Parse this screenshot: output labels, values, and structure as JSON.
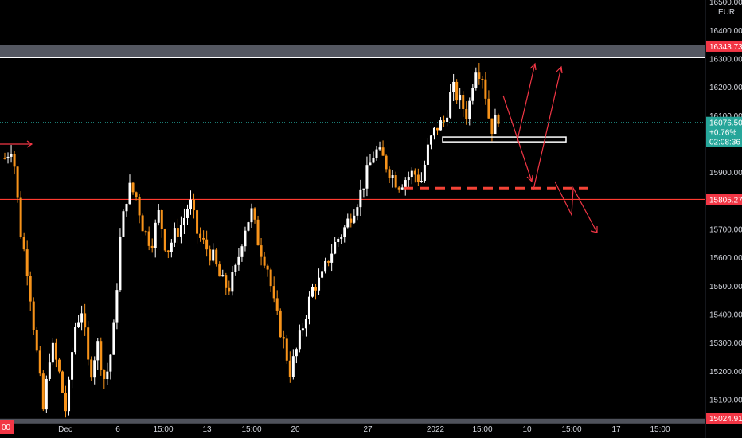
{
  "chart_data": {
    "type": "candlestick",
    "currency": "EUR",
    "y_axis_ticks": [
      15100,
      15200,
      15300,
      15400,
      15500,
      15600,
      15700,
      15800,
      15900,
      16000,
      16100,
      16200,
      16300,
      16400,
      16500
    ],
    "y_axis_tick_labels": [
      "15100.00",
      "15200.00",
      "15300.00",
      "15400.00",
      "15500.00",
      "15600.00",
      "15700.00",
      "15800.00",
      "15900.00",
      "16000.00",
      "16100.00",
      "16200.00",
      "16300.00",
      "16400.00",
      "16500.00"
    ],
    "x_axis_labels": [
      "Dec",
      "6",
      "15:00",
      "13",
      "15:00",
      "20",
      "27",
      "2022",
      "15:00",
      "10",
      "15:00",
      "17",
      "15:00"
    ],
    "price_tags": {
      "resistance": "16343.73",
      "last_price": "16076.50",
      "change": "+0.76%",
      "countdown": "02:08:36",
      "support": "15805.27",
      "bottom": "15024.91",
      "left_edge": "00"
    },
    "price_levels": {
      "resistance_high": 16343.73,
      "resistance_low": 16305,
      "last_price": 16076.5,
      "support": 15805.27,
      "bottom": 15024.91,
      "dashed_level": 15845,
      "small_box_top": 16025,
      "small_box_bottom": 16008
    },
    "trend": [
      15950,
      16000,
      15700,
      15550,
      15300,
      15060,
      15300,
      15200,
      15050,
      15350,
      15420,
      15180,
      15300,
      15160,
      15300,
      15680,
      15850,
      15820,
      15700,
      15650,
      15760,
      15620,
      15680,
      15720,
      15800,
      15680,
      15640,
      15600,
      15520,
      15490,
      15560,
      15700,
      15760,
      15640,
      15580,
      15420,
      15320,
      15200,
      15290,
      15400,
      15500,
      15520,
      15600,
      15660,
      15700,
      15760,
      15820,
      15900,
      15980,
      15950,
      15900,
      15860,
      15880,
      15900,
      15870,
      16000,
      16060,
      16080,
      16200,
      16150,
      16100,
      16280,
      16240,
      16050,
      16100
    ],
    "colors": {
      "up": "#ffffff",
      "down": "#f7931a",
      "level_line": "#ff3b30",
      "arrow": "#f23645",
      "dashed": "#f44336",
      "last_price_tag": "#26a69a",
      "band": "#5d606b"
    }
  }
}
